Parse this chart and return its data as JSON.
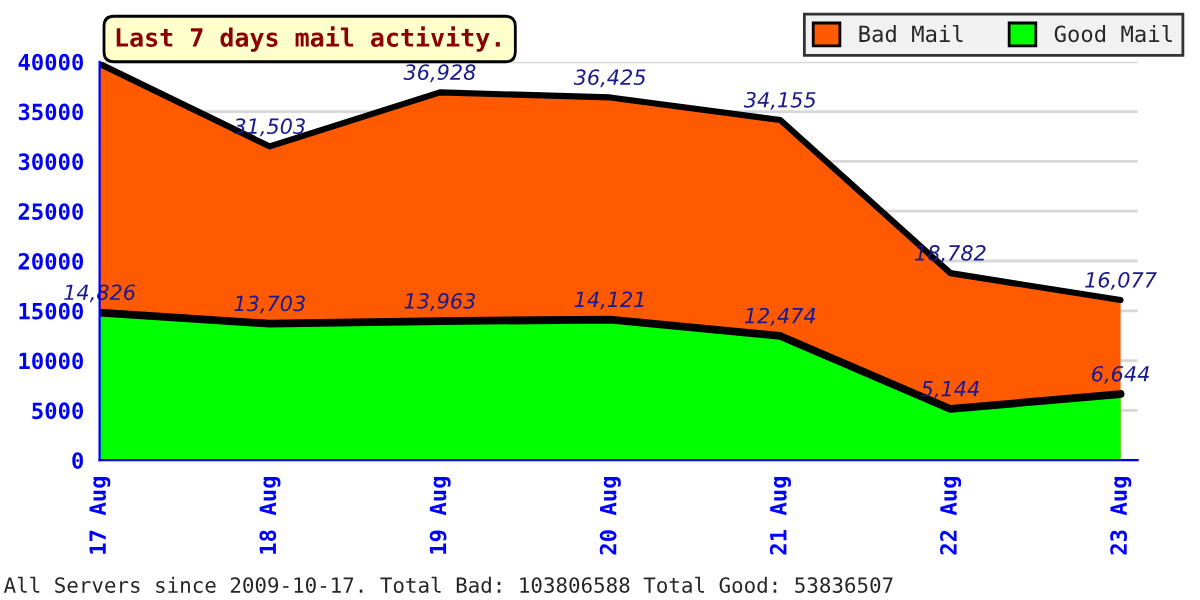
{
  "chart_data": {
    "type": "area",
    "title": "Last 7 days mail activity.",
    "categories": [
      "17 Aug",
      "18 Aug",
      "19 Aug",
      "20 Aug",
      "21 Aug",
      "22 Aug",
      "23 Aug"
    ],
    "series": [
      {
        "name": "Bad Mail",
        "color": "#ff5a00",
        "values": [
          39800,
          31503,
          36928,
          36425,
          34155,
          18782,
          16077
        ],
        "value_labels": [
          null,
          "31,503",
          "36,928",
          "36,425",
          "34,155",
          "18,782",
          "16,077"
        ]
      },
      {
        "name": "Good Mail",
        "color": "#00ff00",
        "values": [
          14826,
          13703,
          13963,
          14121,
          12474,
          5144,
          6644
        ],
        "value_labels": [
          "14,826",
          "13,703",
          "13,963",
          "14,121",
          "12,474",
          "5,144",
          "6,644"
        ]
      }
    ],
    "ylim": [
      0,
      40000
    ],
    "yticks": [
      0,
      5000,
      10000,
      15000,
      20000,
      25000,
      30000,
      35000,
      40000
    ],
    "grid": "y",
    "legend": "top right",
    "annotations": [
      "All Servers since 2009-10-17. Total Bad: 103806588 Total Good: 53836507"
    ]
  }
}
